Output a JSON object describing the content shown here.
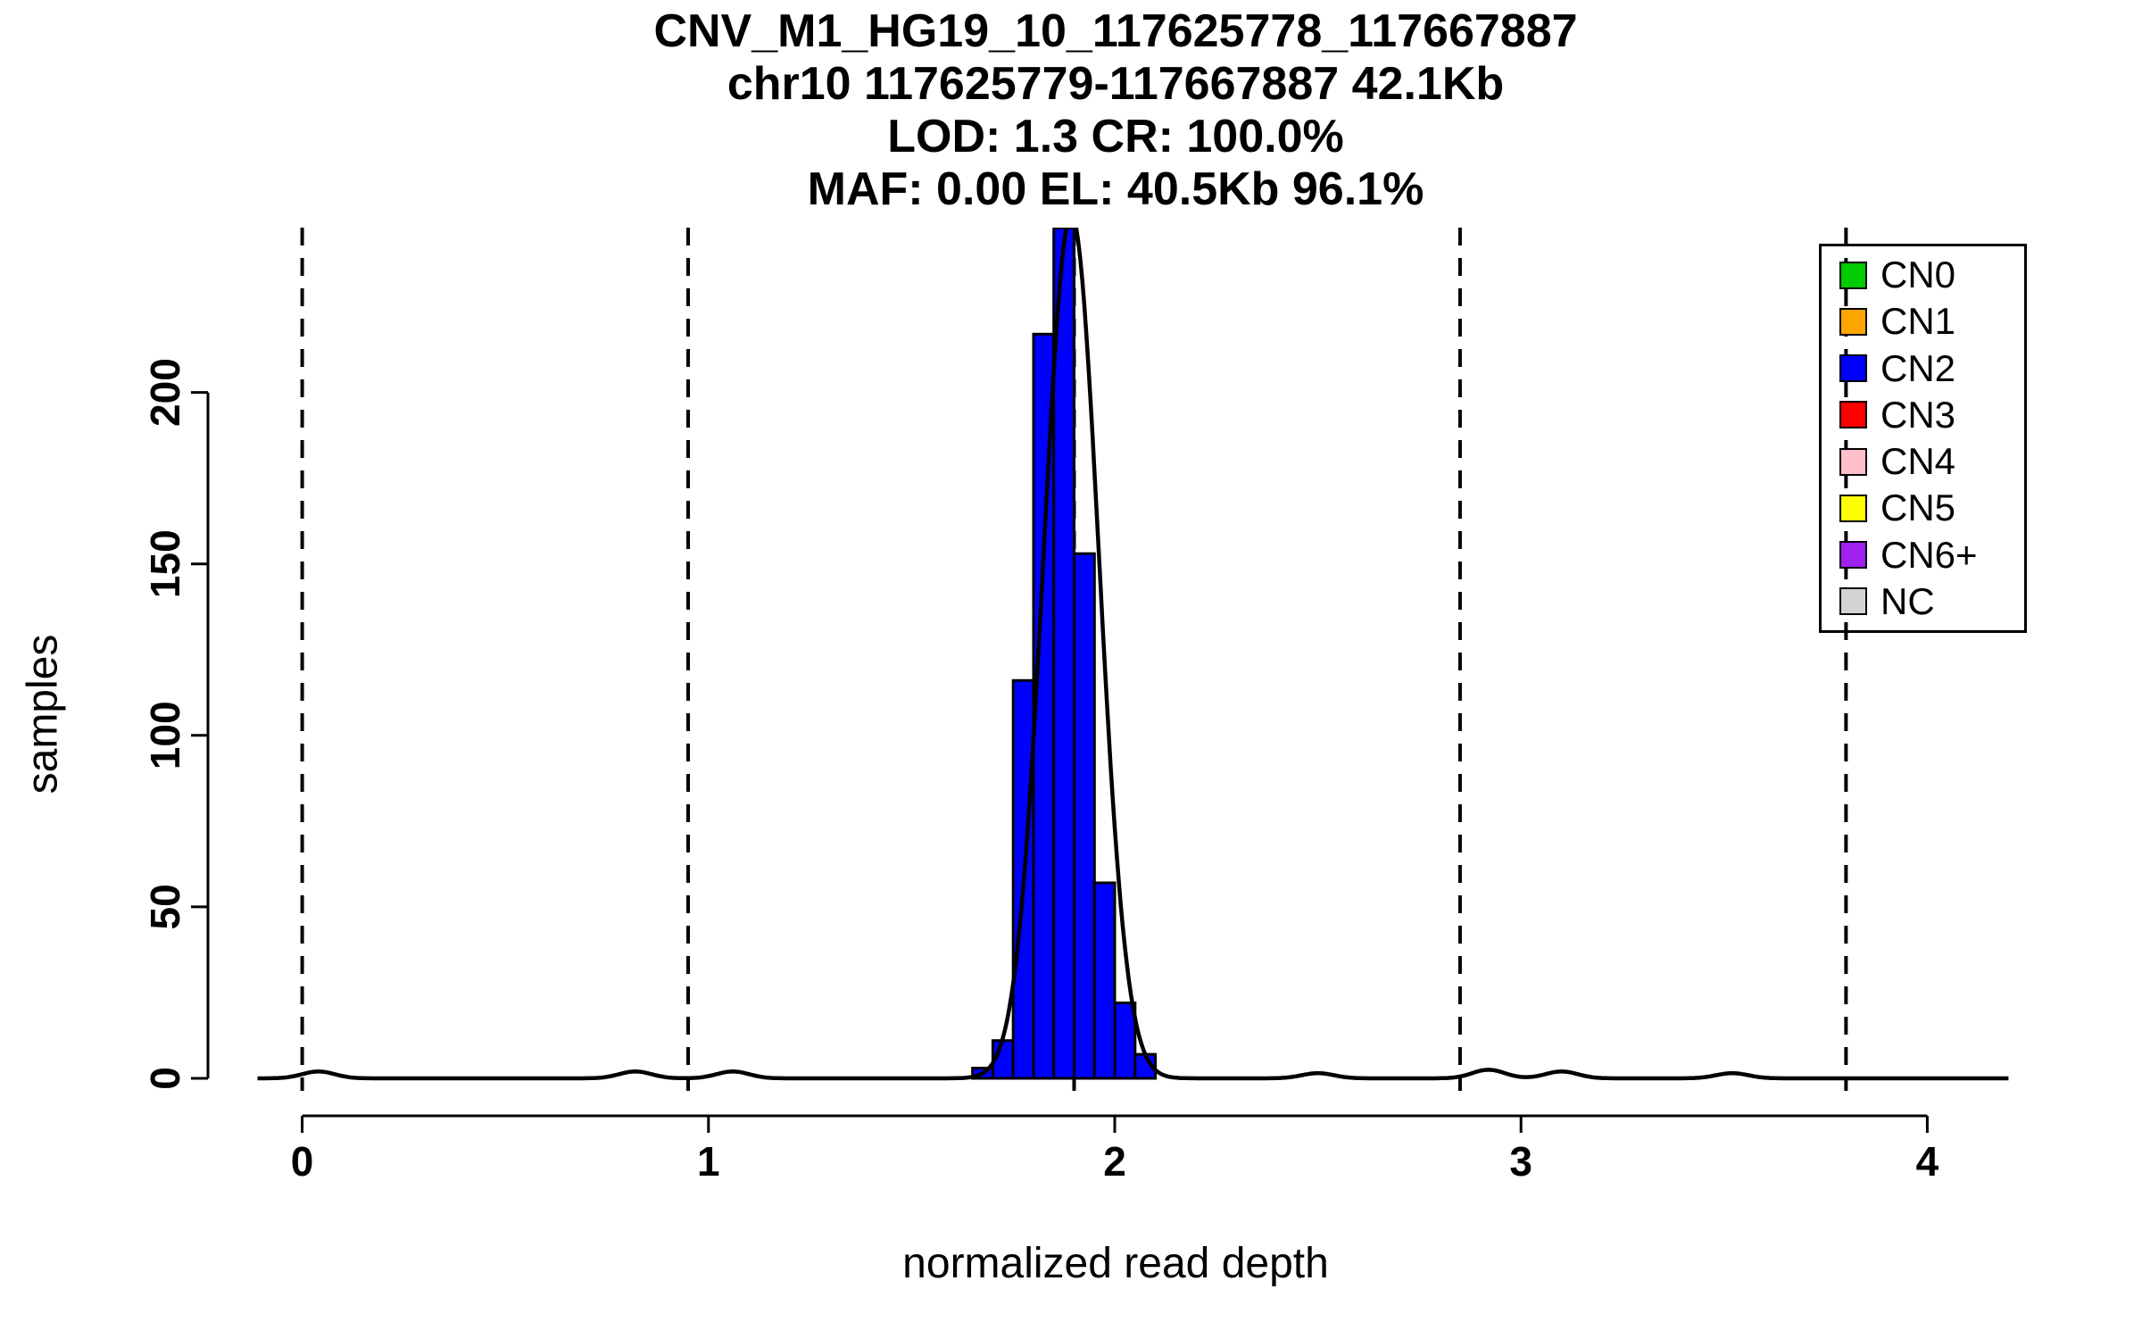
{
  "chart_data": {
    "type": "bar",
    "variant": "histogram_with_density_curve",
    "title_lines": [
      "CNV_M1_HG19_10_117625778_117667887",
      "chr10 117625779-117667887 42.1Kb",
      "LOD: 1.3 CR: 100.0%",
      "MAF: 0.00 EL: 40.5Kb 96.1%"
    ],
    "xlabel": "normalized read depth",
    "ylabel": "samples",
    "xlim": [
      -0.11,
      4.2
    ],
    "ylim": [
      0,
      248
    ],
    "x_ticks": [
      "0",
      "1",
      "2",
      "3",
      "4"
    ],
    "y_ticks": [
      "0",
      "50",
      "100",
      "150",
      "200"
    ],
    "grid": false,
    "background": "#ffffff",
    "bar_color": "#0000FF",
    "bar_edge_color": "#000000",
    "bin_width": 0.05,
    "bins": [
      {
        "x0": 1.65,
        "count": 3
      },
      {
        "x0": 1.7,
        "count": 11
      },
      {
        "x0": 1.75,
        "count": 116
      },
      {
        "x0": 1.8,
        "count": 217
      },
      {
        "x0": 1.85,
        "count": 248
      },
      {
        "x0": 1.9,
        "count": 153
      },
      {
        "x0": 1.95,
        "count": 57
      },
      {
        "x0": 2.0,
        "count": 22
      },
      {
        "x0": 2.05,
        "count": 7
      }
    ],
    "density_curve": {
      "color": "#000000",
      "mean": 1.893,
      "sd": 0.068,
      "peak": 252,
      "minor_bumps": [
        {
          "x": 0.04,
          "h": 2.0,
          "sd": 0.04
        },
        {
          "x": 0.82,
          "h": 2.0,
          "sd": 0.04
        },
        {
          "x": 1.06,
          "h": 2.0,
          "sd": 0.04
        },
        {
          "x": 2.5,
          "h": 1.5,
          "sd": 0.04
        },
        {
          "x": 2.92,
          "h": 2.5,
          "sd": 0.04
        },
        {
          "x": 3.1,
          "h": 2.0,
          "sd": 0.04
        },
        {
          "x": 3.52,
          "h": 1.5,
          "sd": 0.04
        }
      ]
    },
    "dashed_vlines": {
      "positions": [
        0,
        0.95,
        1.9,
        2.85,
        3.8
      ],
      "color": "#000000"
    },
    "legend": {
      "position": "top-right",
      "entries": [
        {
          "label": "CN0",
          "color": "#00CD00"
        },
        {
          "label": "CN1",
          "color": "#FFA500"
        },
        {
          "label": "CN2",
          "color": "#0000FF"
        },
        {
          "label": "CN3",
          "color": "#FF0000"
        },
        {
          "label": "CN4",
          "color": "#FFC0CB"
        },
        {
          "label": "CN5",
          "color": "#FFFF00"
        },
        {
          "label": "CN6+",
          "color": "#A020F0"
        },
        {
          "label": "NC",
          "color": "#D3D3D3"
        }
      ]
    }
  }
}
